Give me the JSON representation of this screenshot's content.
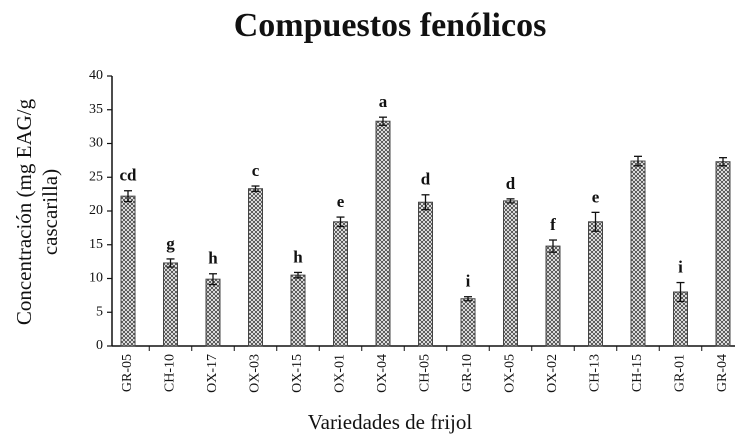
{
  "chart_data": {
    "type": "bar",
    "title": "Compuestos fenólicos",
    "xlabel": "Variedades de frijol",
    "ylabel": [
      "Concentración (mg EAG/g",
      "cascarilla)"
    ],
    "categories": [
      "GR-05",
      "CH-10",
      "OX-17",
      "OX-03",
      "OX-15",
      "OX-01",
      "OX-04",
      "CH-05",
      "GR-10",
      "OX-05",
      "OX-02",
      "CH-13",
      "CH-15",
      "GR-01",
      "GR-04"
    ],
    "values": [
      22.2,
      12.3,
      9.9,
      23.3,
      10.5,
      18.4,
      33.3,
      21.3,
      7.0,
      21.5,
      14.8,
      18.4,
      27.4,
      8.0,
      27.3
    ],
    "errors": [
      0.8,
      0.6,
      0.8,
      0.4,
      0.4,
      0.7,
      0.6,
      1.1,
      0.3,
      0.3,
      0.9,
      1.4,
      0.7,
      1.4,
      0.6
    ],
    "letters": [
      "cd",
      "g",
      "h",
      "c",
      "h",
      "e",
      "a",
      "d",
      "i",
      "d",
      "f",
      "e",
      null,
      "i",
      null
    ],
    "color": "#444444",
    "ylim": [
      0,
      40
    ],
    "yticks": [
      0,
      5,
      10,
      15,
      20,
      25,
      30,
      35,
      40
    ]
  }
}
